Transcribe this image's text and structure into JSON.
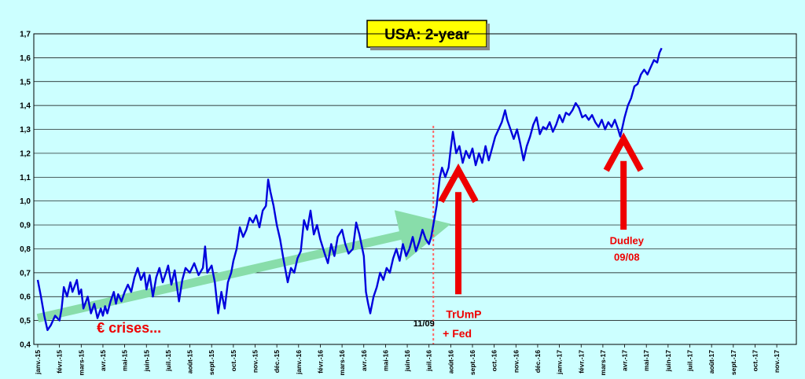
{
  "chart_data": {
    "type": "line",
    "title": "USA: 2-year",
    "ylim": [
      0.4,
      1.7
    ],
    "y_ticks": [
      "0,4",
      "0,5",
      "0,6",
      "0,7",
      "0,8",
      "0,9",
      "1,0",
      "1,1",
      "1,2",
      "1,3",
      "1,4",
      "1,5",
      "1,6",
      "1,7"
    ],
    "x_ticks": [
      "janv.-15",
      "févr.-15",
      "mars-15",
      "avr.-15",
      "mai-15",
      "juin-15",
      "juil.-15",
      "août-15",
      "sept.-15",
      "oct.-15",
      "nov.-15",
      "déc.-15",
      "janv.-16",
      "févr.-16",
      "mars-16",
      "avr.-16",
      "mai-16",
      "juin-16",
      "juil.-16",
      "août-16",
      "sept.-16",
      "oct.-16",
      "nov.-16",
      "déc.-16",
      "janv.-17",
      "févr.-17",
      "mars-17",
      "avr.-17",
      "mai-17",
      "juin-17",
      "juil.-17",
      "août-17",
      "sept.-17",
      "oct.-17",
      "nov.-17"
    ],
    "grid": "horizontal",
    "series": [
      {
        "color": "#0000dd",
        "points": [
          [
            0.0,
            0.67
          ],
          [
            0.15,
            0.6
          ],
          [
            0.3,
            0.52
          ],
          [
            0.45,
            0.46
          ],
          [
            0.6,
            0.48
          ],
          [
            0.8,
            0.52
          ],
          [
            1.0,
            0.5
          ],
          [
            1.1,
            0.55
          ],
          [
            1.2,
            0.64
          ],
          [
            1.35,
            0.6
          ],
          [
            1.5,
            0.66
          ],
          [
            1.6,
            0.62
          ],
          [
            1.8,
            0.67
          ],
          [
            1.9,
            0.61
          ],
          [
            2.0,
            0.63
          ],
          [
            2.1,
            0.55
          ],
          [
            2.3,
            0.6
          ],
          [
            2.45,
            0.53
          ],
          [
            2.6,
            0.57
          ],
          [
            2.75,
            0.51
          ],
          [
            2.9,
            0.55
          ],
          [
            3.0,
            0.52
          ],
          [
            3.1,
            0.56
          ],
          [
            3.2,
            0.53
          ],
          [
            3.35,
            0.58
          ],
          [
            3.5,
            0.62
          ],
          [
            3.6,
            0.57
          ],
          [
            3.7,
            0.61
          ],
          [
            3.85,
            0.58
          ],
          [
            4.0,
            0.62
          ],
          [
            4.15,
            0.65
          ],
          [
            4.3,
            0.62
          ],
          [
            4.45,
            0.68
          ],
          [
            4.6,
            0.72
          ],
          [
            4.75,
            0.67
          ],
          [
            4.9,
            0.7
          ],
          [
            5.0,
            0.63
          ],
          [
            5.15,
            0.69
          ],
          [
            5.3,
            0.6
          ],
          [
            5.45,
            0.68
          ],
          [
            5.6,
            0.72
          ],
          [
            5.75,
            0.66
          ],
          [
            5.9,
            0.7
          ],
          [
            6.0,
            0.73
          ],
          [
            6.15,
            0.65
          ],
          [
            6.3,
            0.71
          ],
          [
            6.5,
            0.58
          ],
          [
            6.65,
            0.67
          ],
          [
            6.8,
            0.72
          ],
          [
            7.0,
            0.7
          ],
          [
            7.2,
            0.74
          ],
          [
            7.4,
            0.69
          ],
          [
            7.6,
            0.72
          ],
          [
            7.7,
            0.81
          ],
          [
            7.8,
            0.7
          ],
          [
            8.0,
            0.73
          ],
          [
            8.15,
            0.66
          ],
          [
            8.3,
            0.53
          ],
          [
            8.45,
            0.62
          ],
          [
            8.6,
            0.55
          ],
          [
            8.75,
            0.66
          ],
          [
            8.9,
            0.7
          ],
          [
            9.0,
            0.75
          ],
          [
            9.15,
            0.8
          ],
          [
            9.3,
            0.89
          ],
          [
            9.45,
            0.85
          ],
          [
            9.6,
            0.88
          ],
          [
            9.75,
            0.93
          ],
          [
            9.9,
            0.91
          ],
          [
            10.05,
            0.94
          ],
          [
            10.2,
            0.89
          ],
          [
            10.35,
            0.96
          ],
          [
            10.5,
            0.98
          ],
          [
            10.6,
            1.09
          ],
          [
            10.7,
            1.04
          ],
          [
            10.85,
            0.98
          ],
          [
            11.0,
            0.9
          ],
          [
            11.15,
            0.84
          ],
          [
            11.3,
            0.76
          ],
          [
            11.5,
            0.66
          ],
          [
            11.65,
            0.72
          ],
          [
            11.8,
            0.7
          ],
          [
            11.95,
            0.76
          ],
          [
            12.1,
            0.79
          ],
          [
            12.25,
            0.92
          ],
          [
            12.4,
            0.88
          ],
          [
            12.55,
            0.96
          ],
          [
            12.7,
            0.86
          ],
          [
            12.85,
            0.9
          ],
          [
            13.0,
            0.84
          ],
          [
            13.2,
            0.78
          ],
          [
            13.35,
            0.74
          ],
          [
            13.5,
            0.82
          ],
          [
            13.65,
            0.77
          ],
          [
            13.8,
            0.85
          ],
          [
            14.0,
            0.88
          ],
          [
            14.15,
            0.82
          ],
          [
            14.3,
            0.78
          ],
          [
            14.5,
            0.8
          ],
          [
            14.65,
            0.91
          ],
          [
            14.8,
            0.86
          ],
          [
            15.0,
            0.77
          ],
          [
            15.1,
            0.62
          ],
          [
            15.2,
            0.57
          ],
          [
            15.3,
            0.53
          ],
          [
            15.45,
            0.6
          ],
          [
            15.6,
            0.64
          ],
          [
            15.75,
            0.7
          ],
          [
            15.9,
            0.67
          ],
          [
            16.05,
            0.72
          ],
          [
            16.2,
            0.7
          ],
          [
            16.35,
            0.76
          ],
          [
            16.5,
            0.8
          ],
          [
            16.65,
            0.75
          ],
          [
            16.8,
            0.82
          ],
          [
            16.95,
            0.77
          ],
          [
            17.1,
            0.8
          ],
          [
            17.25,
            0.85
          ],
          [
            17.4,
            0.79
          ],
          [
            17.55,
            0.83
          ],
          [
            17.7,
            0.88
          ],
          [
            17.85,
            0.84
          ],
          [
            18.0,
            0.82
          ],
          [
            18.1,
            0.85
          ],
          [
            18.2,
            0.9
          ],
          [
            18.35,
            0.98
          ],
          [
            18.5,
            1.1
          ],
          [
            18.6,
            1.14
          ],
          [
            18.75,
            1.1
          ],
          [
            18.9,
            1.14
          ],
          [
            19.0,
            1.22
          ],
          [
            19.1,
            1.29
          ],
          [
            19.25,
            1.2
          ],
          [
            19.4,
            1.23
          ],
          [
            19.55,
            1.16
          ],
          [
            19.7,
            1.21
          ],
          [
            19.85,
            1.18
          ],
          [
            20.0,
            1.22
          ],
          [
            20.15,
            1.15
          ],
          [
            20.3,
            1.2
          ],
          [
            20.45,
            1.16
          ],
          [
            20.6,
            1.23
          ],
          [
            20.75,
            1.17
          ],
          [
            20.9,
            1.22
          ],
          [
            21.05,
            1.27
          ],
          [
            21.2,
            1.3
          ],
          [
            21.35,
            1.33
          ],
          [
            21.5,
            1.38
          ],
          [
            21.6,
            1.34
          ],
          [
            21.75,
            1.3
          ],
          [
            21.9,
            1.26
          ],
          [
            22.05,
            1.3
          ],
          [
            22.2,
            1.24
          ],
          [
            22.35,
            1.17
          ],
          [
            22.5,
            1.23
          ],
          [
            22.65,
            1.27
          ],
          [
            22.8,
            1.32
          ],
          [
            22.95,
            1.35
          ],
          [
            23.1,
            1.28
          ],
          [
            23.25,
            1.31
          ],
          [
            23.4,
            1.3
          ],
          [
            23.55,
            1.33
          ],
          [
            23.7,
            1.29
          ],
          [
            23.85,
            1.32
          ],
          [
            24.0,
            1.36
          ],
          [
            24.15,
            1.33
          ],
          [
            24.3,
            1.37
          ],
          [
            24.45,
            1.36
          ],
          [
            24.6,
            1.38
          ],
          [
            24.75,
            1.41
          ],
          [
            24.9,
            1.39
          ],
          [
            25.05,
            1.35
          ],
          [
            25.2,
            1.36
          ],
          [
            25.35,
            1.34
          ],
          [
            25.5,
            1.36
          ],
          [
            25.65,
            1.33
          ],
          [
            25.8,
            1.31
          ],
          [
            25.95,
            1.34
          ],
          [
            26.1,
            1.3
          ],
          [
            26.25,
            1.33
          ],
          [
            26.4,
            1.31
          ],
          [
            26.55,
            1.34
          ],
          [
            26.7,
            1.3
          ],
          [
            26.8,
            1.27
          ],
          [
            26.9,
            1.31
          ],
          [
            27.0,
            1.35
          ],
          [
            27.15,
            1.4
          ],
          [
            27.3,
            1.43
          ],
          [
            27.45,
            1.48
          ],
          [
            27.6,
            1.49
          ],
          [
            27.75,
            1.53
          ],
          [
            27.9,
            1.55
          ],
          [
            28.05,
            1.53
          ],
          [
            28.2,
            1.56
          ],
          [
            28.35,
            1.59
          ],
          [
            28.5,
            1.58
          ],
          [
            28.6,
            1.62
          ],
          [
            28.7,
            1.64
          ]
        ]
      }
    ],
    "trend_arrow": {
      "color": "#88ddaa",
      "from": [
        0.0,
        0.51
      ],
      "to": [
        18.2,
        0.89
      ]
    },
    "vline": {
      "x": 18.2,
      "label": "11/09",
      "color": "#ff6666"
    },
    "annotations": [
      {
        "text": "€ crises...",
        "x": 4.2,
        "y": 0.45,
        "size": 18
      },
      {
        "text": "TrUmP",
        "x": 19.6,
        "y": 0.51,
        "size": 14
      },
      {
        "text": "+ Fed",
        "x": 19.3,
        "y": 0.43,
        "size": 14
      },
      {
        "text": "Dudley",
        "x": 27.1,
        "y": 0.82,
        "size": 13
      },
      {
        "text": "09/08",
        "x": 27.1,
        "y": 0.75,
        "size": 13
      }
    ],
    "arrows": [
      {
        "x": 19.35,
        "y_from": 0.61,
        "y_to": 1.13,
        "color": "#ee0000"
      },
      {
        "x": 26.95,
        "y_from": 0.88,
        "y_to": 1.26,
        "color": "#ee0000"
      }
    ]
  }
}
